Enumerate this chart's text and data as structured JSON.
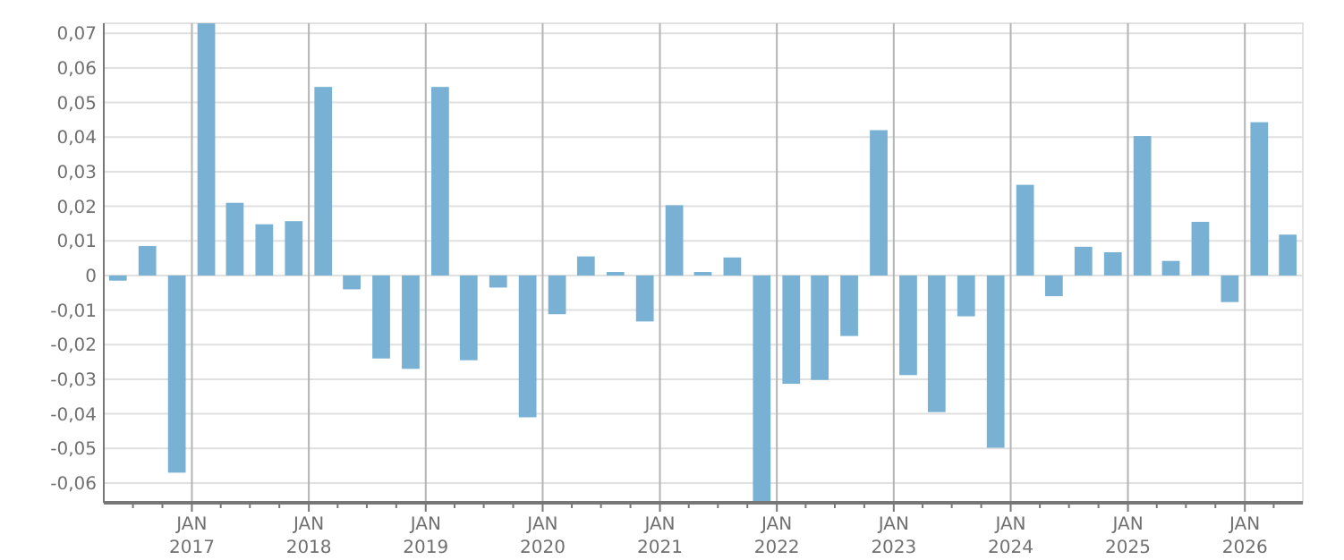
{
  "chart_data": {
    "type": "bar",
    "color": "#78b1d3",
    "x": [
      "2016-05-15",
      "2016-08-15",
      "2016-11-15",
      "2017-02-15",
      "2017-05-15",
      "2017-08-15",
      "2017-11-15",
      "2018-02-15",
      "2018-05-15",
      "2018-08-15",
      "2018-11-15",
      "2019-02-15",
      "2019-05-15",
      "2019-08-15",
      "2019-11-15",
      "2020-02-15",
      "2020-05-15",
      "2020-08-15",
      "2020-11-15",
      "2021-02-15",
      "2021-05-15",
      "2021-08-15",
      "2021-11-15",
      "2022-02-15",
      "2022-05-15",
      "2022-08-15",
      "2022-11-15",
      "2023-02-15",
      "2023-05-15",
      "2023-08-15",
      "2023-11-15",
      "2024-02-15",
      "2024-05-15",
      "2024-08-15",
      "2024-11-15",
      "2025-02-15",
      "2025-05-15",
      "2025-08-15",
      "2025-11-15",
      "2026-02-15",
      "2026-05-15"
    ],
    "values": [
      -0.0015,
      0.0085,
      -0.057,
      0.0729,
      0.021,
      0.0148,
      0.0157,
      0.0545,
      -0.004,
      -0.024,
      -0.027,
      0.0545,
      -0.0245,
      -0.0035,
      -0.041,
      -0.0112,
      0.0055,
      0.001,
      -0.0133,
      0.0203,
      0.001,
      0.0052,
      -0.0657,
      -0.0313,
      -0.0302,
      -0.0175,
      0.042,
      -0.0288,
      -0.0395,
      -0.0118,
      -0.0498,
      0.0262,
      -0.006,
      0.0083,
      0.0067,
      0.0403,
      0.0042,
      0.0155,
      -0.0077,
      0.0443,
      0.0118
    ],
    "xlim": [
      "2016-04-01",
      "2026-07-01"
    ],
    "xticks": [
      {
        "value": "2016-07-01",
        "label": null
      },
      {
        "value": "2016-10-01",
        "label": null
      },
      {
        "value": "2017-01-01",
        "label": "JAN\n2017"
      },
      {
        "value": "2017-04-01",
        "label": null
      },
      {
        "value": "2017-07-01",
        "label": null
      },
      {
        "value": "2017-10-01",
        "label": null
      },
      {
        "value": "2018-01-01",
        "label": "JAN\n2018"
      },
      {
        "value": "2018-04-01",
        "label": null
      },
      {
        "value": "2018-07-01",
        "label": null
      },
      {
        "value": "2018-10-01",
        "label": null
      },
      {
        "value": "2019-01-01",
        "label": "JAN\n2019"
      },
      {
        "value": "2019-04-01",
        "label": null
      },
      {
        "value": "2019-07-01",
        "label": null
      },
      {
        "value": "2019-10-01",
        "label": null
      },
      {
        "value": "2020-01-01",
        "label": "JAN\n2020"
      },
      {
        "value": "2020-04-01",
        "label": null
      },
      {
        "value": "2020-07-01",
        "label": null
      },
      {
        "value": "2020-10-01",
        "label": null
      },
      {
        "value": "2021-01-01",
        "label": "JAN\n2021"
      },
      {
        "value": "2021-04-01",
        "label": null
      },
      {
        "value": "2021-07-01",
        "label": null
      },
      {
        "value": "2021-10-01",
        "label": null
      },
      {
        "value": "2022-01-01",
        "label": "JAN\n2022"
      },
      {
        "value": "2022-04-01",
        "label": null
      },
      {
        "value": "2022-07-01",
        "label": null
      },
      {
        "value": "2022-10-01",
        "label": null
      },
      {
        "value": "2023-01-01",
        "label": "JAN\n2023"
      },
      {
        "value": "2023-04-01",
        "label": null
      },
      {
        "value": "2023-07-01",
        "label": null
      },
      {
        "value": "2023-10-01",
        "label": null
      },
      {
        "value": "2024-01-01",
        "label": "JAN\n2024"
      },
      {
        "value": "2024-04-01",
        "label": null
      },
      {
        "value": "2024-07-01",
        "label": null
      },
      {
        "value": "2024-10-01",
        "label": null
      },
      {
        "value": "2025-01-01",
        "label": "JAN\n2025"
      },
      {
        "value": "2025-04-01",
        "label": null
      },
      {
        "value": "2025-07-01",
        "label": null
      },
      {
        "value": "2025-10-01",
        "label": null
      },
      {
        "value": "2026-01-01",
        "label": "JAN\n2026"
      },
      {
        "value": "2026-04-01",
        "label": null
      }
    ],
    "ylim": [
      -0.0657,
      0.0729
    ],
    "yticks": [
      {
        "value": -0.06,
        "label": "-0,06"
      },
      {
        "value": -0.05,
        "label": "-0,05"
      },
      {
        "value": -0.04,
        "label": "-0,04"
      },
      {
        "value": -0.03,
        "label": "-0,03"
      },
      {
        "value": -0.02,
        "label": "-0,02"
      },
      {
        "value": -0.01,
        "label": "-0,01"
      },
      0,
      {
        "value": 0.01,
        "label": "0,01"
      },
      {
        "value": 0.02,
        "label": "0,02"
      },
      {
        "value": 0.03,
        "label": "0,03"
      },
      {
        "value": 0.04,
        "label": "0,04"
      },
      {
        "value": 0.05,
        "label": "0,05"
      },
      {
        "value": 0.06,
        "label": "0,06"
      },
      {
        "value": 0.07,
        "label": "0,07"
      }
    ],
    "grid": true
  }
}
